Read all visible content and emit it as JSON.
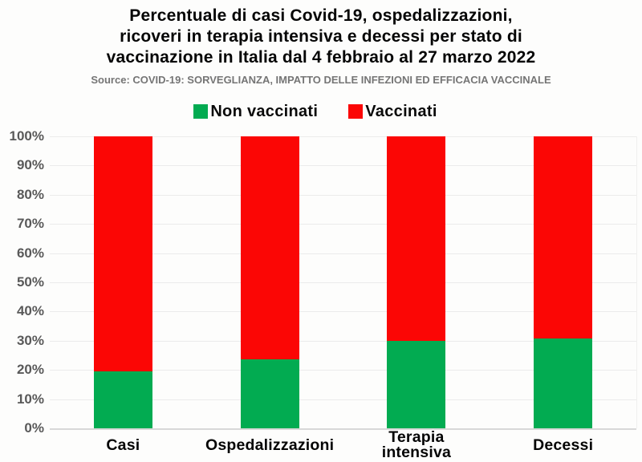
{
  "chart_data": {
    "type": "bar",
    "stacked": true,
    "title": "Percentuale di casi Covid-19, ospedalizzazioni,\nricoveri in terapia intensiva e decessi per stato di\nvaccinazione in Italia dal 4 febbraio al 27 marzo 2022",
    "source": "Source: COVID-19: SORVEGLIANZA, IMPATTO DELLE INFEZIONI ED EFFICACIA VACCINALE",
    "categories": [
      "Casi",
      "Ospedalizzazioni",
      "Terapia\nintensiva",
      "Decessi"
    ],
    "series": [
      {
        "name": "Non vaccinati",
        "color": "#02AB51",
        "values": [
          19.5,
          23.5,
          29.9,
          30.7
        ]
      },
      {
        "name": "Vaccinati",
        "color": "#FB0605",
        "values": [
          80.5,
          76.5,
          70.1,
          69.3
        ]
      }
    ],
    "ylabel": "",
    "ylim": [
      0,
      100
    ],
    "yticks": [
      "100%",
      "90%",
      "80%",
      "70%",
      "60%",
      "50%",
      "40%",
      "30%",
      "20%",
      "10%",
      "0%"
    ],
    "grid": true,
    "legend_position": "top",
    "colors": {
      "grid": "#ebebeb",
      "axis_line": "#d8d8d8",
      "tick_label": "#595959",
      "source_text": "#757575",
      "title_text": "#050505"
    }
  }
}
